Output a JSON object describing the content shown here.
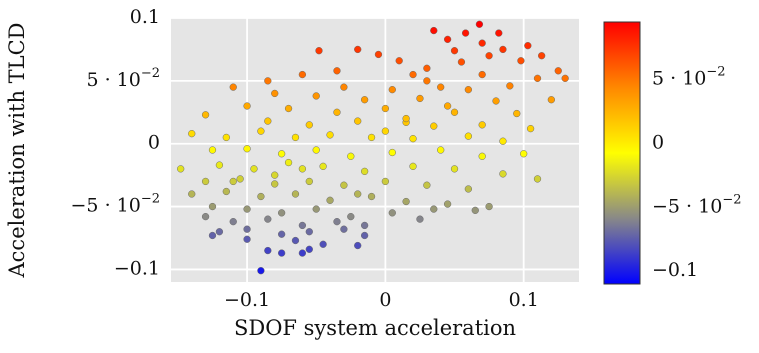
{
  "chart_data": {
    "type": "scatter",
    "title": "",
    "xlabel": "SDOF system acceleration",
    "ylabel": "Acceleration with TLCD",
    "xlim": [
      -0.155,
      0.14
    ],
    "ylim": [
      -0.11,
      0.1
    ],
    "grid": true,
    "legend": "none",
    "x_ticks": [
      {
        "value": -0.1,
        "label": "−0.1"
      },
      {
        "value": 0,
        "label": "0"
      },
      {
        "value": 0.1,
        "label": "0.1"
      }
    ],
    "y_ticks": [
      {
        "value": 0.1,
        "label": "0.1",
        "base": "",
        "exponent": ""
      },
      {
        "value": 0.05,
        "label": "",
        "base": "5 · 10",
        "exponent": "−2"
      },
      {
        "value": 0,
        "label": "0",
        "base": "",
        "exponent": ""
      },
      {
        "value": -0.05,
        "label": "",
        "base": "−5 · 10",
        "exponent": "−2"
      },
      {
        "value": -0.1,
        "label": "−0.1",
        "base": "",
        "exponent": ""
      }
    ],
    "colorbar": {
      "range": [
        -0.11,
        0.095
      ],
      "colormap": [
        "#0000ff",
        "#888888",
        "#ffff00",
        "#ff8800",
        "#ff0000"
      ],
      "ticks": [
        {
          "value": 0.05,
          "label": "",
          "base": "5 · 10",
          "exponent": "−2"
        },
        {
          "value": 0,
          "label": "0",
          "base": "",
          "exponent": ""
        },
        {
          "value": -0.05,
          "label": "",
          "base": "−5 · 10",
          "exponent": "−2"
        },
        {
          "value": -0.1,
          "label": "−0.1",
          "base": "",
          "exponent": ""
        }
      ]
    },
    "colors": {
      "plot_background": "#e5e5e5",
      "grid": "#ffffff",
      "point_edge": "#6a6a6a"
    },
    "series": [
      {
        "points": [
          [
            0.035,
            0.09
          ],
          [
            0.068,
            0.095
          ],
          [
            0.082,
            0.088
          ],
          [
            0.058,
            0.088
          ],
          [
            0.045,
            0.083
          ],
          [
            0.07,
            0.08
          ],
          [
            0.085,
            0.075
          ],
          [
            0.103,
            0.078
          ],
          [
            0.113,
            0.07
          ],
          [
            0.125,
            0.058
          ],
          [
            0.13,
            0.052
          ],
          [
            0.098,
            0.066
          ],
          [
            0.05,
            0.074
          ],
          [
            -0.048,
            0.074
          ],
          [
            -0.02,
            0.075
          ],
          [
            -0.005,
            0.071
          ],
          [
            0.01,
            0.066
          ],
          [
            0.03,
            0.06
          ],
          [
            -0.085,
            0.05
          ],
          [
            -0.06,
            0.055
          ],
          [
            -0.035,
            0.058
          ],
          [
            0.02,
            0.055
          ],
          [
            0.07,
            0.055
          ],
          [
            0.11,
            0.052
          ],
          [
            -0.03,
            0.045
          ],
          [
            0.005,
            0.043
          ],
          [
            0.04,
            0.045
          ],
          [
            0.06,
            0.043
          ],
          [
            0.09,
            0.046
          ],
          [
            -0.08,
            0.04
          ],
          [
            -0.11,
            0.045
          ],
          [
            -0.05,
            0.038
          ],
          [
            -0.015,
            0.035
          ],
          [
            0.025,
            0.036
          ],
          [
            0.08,
            0.034
          ],
          [
            0.12,
            0.035
          ],
          [
            -0.1,
            0.03
          ],
          [
            -0.07,
            0.028
          ],
          [
            -0.035,
            0.025
          ],
          [
            0.0,
            0.028
          ],
          [
            0.05,
            0.025
          ],
          [
            0.095,
            0.024
          ],
          [
            -0.13,
            0.023
          ],
          [
            -0.085,
            0.018
          ],
          [
            -0.055,
            0.015
          ],
          [
            -0.02,
            0.018
          ],
          [
            0.015,
            0.017
          ],
          [
            0.035,
            0.014
          ],
          [
            0.07,
            0.015
          ],
          [
            0.105,
            0.012
          ],
          [
            -0.14,
            0.008
          ],
          [
            -0.115,
            0.005
          ],
          [
            -0.09,
            0.01
          ],
          [
            -0.065,
            0.005
          ],
          [
            -0.04,
            0.007
          ],
          [
            -0.01,
            0.005
          ],
          [
            0.02,
            0.004
          ],
          [
            0.06,
            0.006
          ],
          [
            0.085,
            0.002
          ],
          [
            -0.125,
            -0.005
          ],
          [
            -0.1,
            -0.004
          ],
          [
            -0.075,
            -0.008
          ],
          [
            -0.05,
            -0.005
          ],
          [
            -0.025,
            -0.01
          ],
          [
            0.005,
            -0.007
          ],
          [
            0.04,
            -0.005
          ],
          [
            0.07,
            -0.01
          ],
          [
            0.1,
            -0.008
          ],
          [
            -0.148,
            -0.02
          ],
          [
            -0.12,
            -0.017
          ],
          [
            -0.095,
            -0.02
          ],
          [
            -0.07,
            -0.015
          ],
          [
            -0.045,
            -0.018
          ],
          [
            -0.015,
            -0.022
          ],
          [
            0.02,
            -0.018
          ],
          [
            0.05,
            -0.02
          ],
          [
            0.085,
            -0.024
          ],
          [
            0.11,
            -0.028
          ],
          [
            -0.13,
            -0.03
          ],
          [
            -0.105,
            -0.028
          ],
          [
            -0.08,
            -0.032
          ],
          [
            -0.055,
            -0.03
          ],
          [
            -0.03,
            -0.033
          ],
          [
            0.0,
            -0.03
          ],
          [
            0.03,
            -0.033
          ],
          [
            0.06,
            -0.036
          ],
          [
            -0.14,
            -0.04
          ],
          [
            -0.115,
            -0.038
          ],
          [
            -0.09,
            -0.042
          ],
          [
            -0.065,
            -0.04
          ],
          [
            -0.04,
            -0.045
          ],
          [
            -0.01,
            -0.042
          ],
          [
            0.015,
            -0.046
          ],
          [
            0.045,
            -0.048
          ],
          [
            0.075,
            -0.05
          ],
          [
            -0.125,
            -0.05
          ],
          [
            -0.1,
            -0.052
          ],
          [
            -0.075,
            -0.055
          ],
          [
            -0.05,
            -0.052
          ],
          [
            -0.025,
            -0.058
          ],
          [
            0.005,
            -0.055
          ],
          [
            0.035,
            -0.052
          ],
          [
            -0.13,
            -0.058
          ],
          [
            -0.11,
            -0.062
          ],
          [
            -0.085,
            -0.06
          ],
          [
            -0.06,
            -0.065
          ],
          [
            -0.035,
            -0.062
          ],
          [
            -0.015,
            -0.065
          ],
          [
            0.025,
            -0.06
          ],
          [
            0.065,
            -0.053
          ],
          [
            -0.12,
            -0.07
          ],
          [
            -0.1,
            -0.068
          ],
          [
            -0.075,
            -0.072
          ],
          [
            -0.055,
            -0.07
          ],
          [
            -0.03,
            -0.068
          ],
          [
            -0.125,
            -0.073
          ],
          [
            -0.1,
            -0.076
          ],
          [
            -0.065,
            -0.077
          ],
          [
            -0.045,
            -0.08
          ],
          [
            -0.015,
            -0.073
          ],
          [
            -0.085,
            -0.085
          ],
          [
            -0.075,
            -0.087
          ],
          [
            -0.06,
            -0.087
          ],
          [
            -0.055,
            -0.084
          ],
          [
            -0.02,
            -0.081
          ],
          [
            -0.09,
            -0.101
          ],
          [
            0.015,
            0.02
          ],
          [
            0.045,
            0.03
          ],
          [
            -0.06,
            -0.02
          ],
          [
            -0.02,
            -0.04
          ],
          [
            0.0,
            0.01
          ],
          [
            0.03,
            0.05
          ],
          [
            0.055,
            0.065
          ],
          [
            0.075,
            0.07
          ],
          [
            -0.08,
            -0.025
          ],
          [
            -0.11,
            -0.03
          ]
        ]
      }
    ]
  }
}
